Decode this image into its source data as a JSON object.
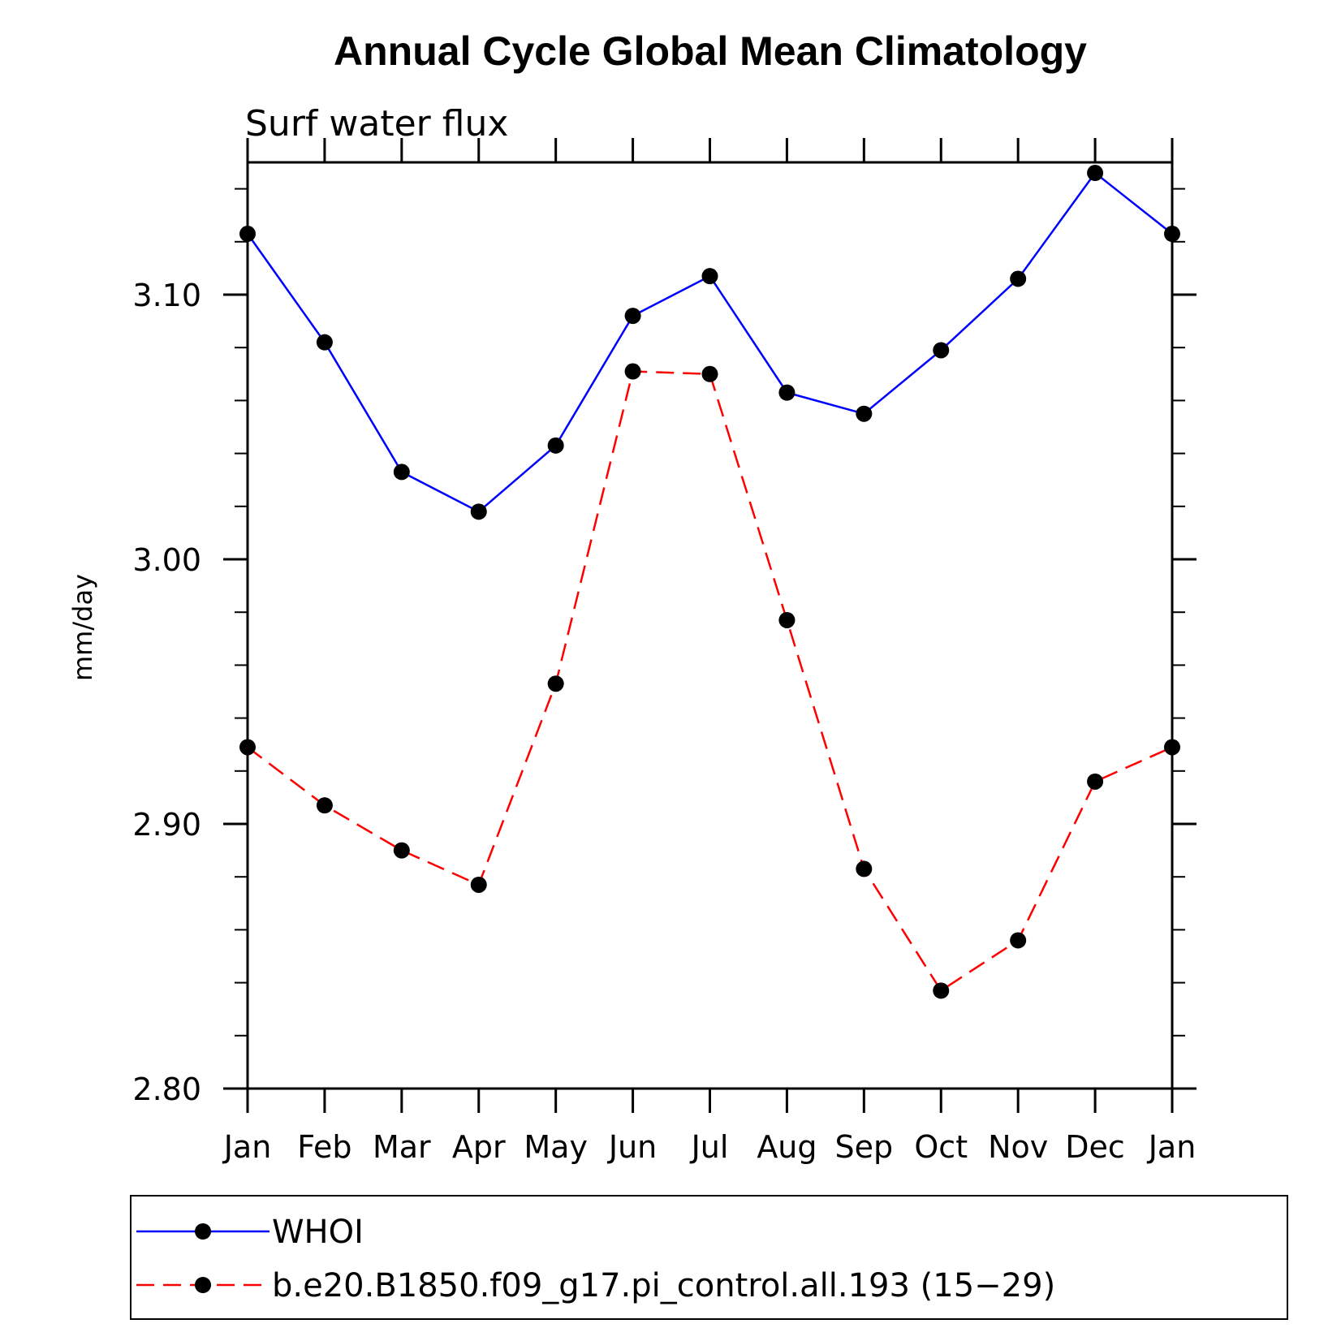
{
  "chart_data": {
    "type": "line",
    "title": "Annual Cycle Global Mean Climatology",
    "subtitle": "Surf water flux",
    "xlabel": "",
    "ylabel": "mm/day",
    "categories": [
      "Jan",
      "Feb",
      "Mar",
      "Apr",
      "May",
      "Jun",
      "Jul",
      "Aug",
      "Sep",
      "Oct",
      "Nov",
      "Dec",
      "Jan"
    ],
    "ylim": [
      2.8,
      3.15
    ],
    "yticks": [
      "2.80",
      "2.90",
      "3.00",
      "3.10"
    ],
    "ytick_values": [
      2.8,
      2.9,
      3.0,
      3.1
    ],
    "grid": false,
    "legend_position": "bottom",
    "series": [
      {
        "name": "WHOI",
        "color": "#0000ff",
        "dash": "solid",
        "values": [
          3.123,
          3.082,
          3.033,
          3.018,
          3.043,
          3.092,
          3.107,
          3.063,
          3.055,
          3.079,
          3.106,
          3.146,
          3.123
        ]
      },
      {
        "name": "b.e20.B1850.f09_g17.pi_control.all.193 (15−29)",
        "color": "#ff0000",
        "dash": "dashed",
        "values": [
          2.929,
          2.907,
          2.89,
          2.877,
          2.953,
          3.071,
          3.07,
          2.977,
          2.883,
          2.837,
          2.856,
          2.916,
          2.929
        ]
      }
    ]
  }
}
